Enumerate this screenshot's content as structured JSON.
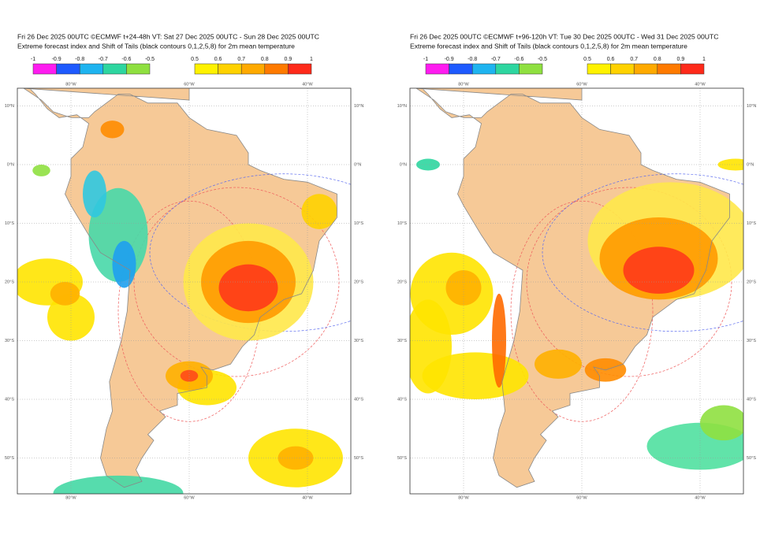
{
  "panels": [
    {
      "title": "Fri 26 Dec 2025 00UTC ©ECMWF t+24-48h  VT: Sat 27 Dec 2025 00UTC - Sun 28 Dec 2025 00UTC",
      "subtitle": "Extreme forecast index and Shift of Tails (black contours 0,1,2,5,8) for 2m mean temperature"
    },
    {
      "title": "Fri 26 Dec 2025 00UTC ©ECMWF t+96-120h  VT: Tue 30 Dec 2025 00UTC - Wed 31 Dec 2025 00UTC",
      "subtitle": "Extreme forecast index and Shift of Tails (black contours 0,1,2,5,8) for 2m mean temperature"
    }
  ],
  "colorbar": {
    "negative": {
      "ticks": [
        -1,
        -0.9,
        -0.8,
        -0.7,
        -0.6,
        -0.5
      ],
      "colors": [
        "#ff1cf0",
        "#1e5aff",
        "#1eb4f0",
        "#2ed6a0",
        "#8fe040"
      ]
    },
    "positive": {
      "ticks": [
        0.5,
        0.6,
        0.7,
        0.8,
        0.9,
        1
      ],
      "colors": [
        "#fff200",
        "#ffd200",
        "#ffaa00",
        "#ff7a00",
        "#ff2a1a"
      ]
    }
  },
  "longitude_labels": [
    "80°W",
    "60°W",
    "40°W"
  ],
  "latitude_labels": [
    "10°N",
    "0°N",
    "10°S",
    "20°S",
    "30°S",
    "40°S",
    "50°S"
  ]
}
